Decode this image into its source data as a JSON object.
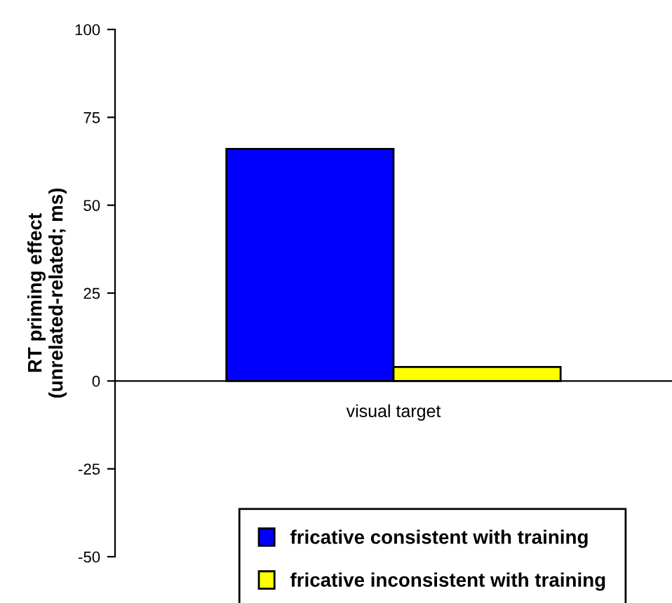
{
  "chart_data": {
    "type": "bar",
    "ylabel": "RT priming effect\n(unrelated-related; ms)",
    "categories": [
      "visual target"
    ],
    "series": [
      {
        "name": "fricative consistent with training",
        "color": "#0000ff",
        "values": [
          66
        ]
      },
      {
        "name": "fricative inconsistent with training",
        "color": "#ffff00",
        "values": [
          4
        ]
      }
    ],
    "ylim": [
      -50,
      100
    ],
    "yticks": [
      -50,
      -25,
      0,
      25,
      50,
      75,
      100
    ],
    "legend": "bottom"
  }
}
